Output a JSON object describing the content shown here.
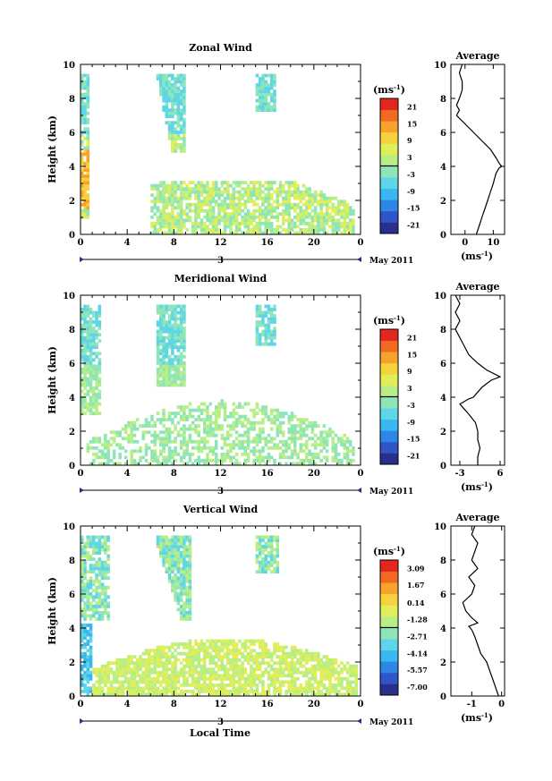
{
  "figure": {
    "month_label": "May 2011",
    "xlabel": "Local Time",
    "avg_title": "Average",
    "ylabel": "Height (km)",
    "cbar_unit": "(ms",
    "unit_sup": "-1",
    "unit_close": ")",
    "avg_xlabel": "(ms",
    "colormap": [
      "#2b2f8c",
      "#2f55c8",
      "#2e86e6",
      "#38b8ee",
      "#5fd6e6",
      "#8ee6b8",
      "#b8ee86",
      "#e0ee5a",
      "#f6d23c",
      "#f7a22c",
      "#f26a22",
      "#e2271e"
    ]
  },
  "chart_data": [
    {
      "type": "heatmap",
      "title": "Zonal Wind",
      "x_ticks": [
        "0",
        "4",
        "8",
        "12",
        "16",
        "20",
        "0"
      ],
      "y_ticks": [
        "0",
        "2",
        "4",
        "6",
        "8",
        "10"
      ],
      "date_label": "3",
      "xlim": [
        0,
        24
      ],
      "ylim": [
        0,
        10
      ],
      "colorbar_ticks": [
        "21",
        "15",
        "9",
        "3",
        "-3",
        "-9",
        "-15",
        "-21"
      ],
      "colorbar_range": [
        -24,
        24
      ],
      "profile": {
        "title": "Average",
        "x_ticks": [
          "0",
          "10"
        ],
        "xlim": [
          -5,
          14
        ],
        "heights": [
          0,
          0.5,
          1,
          1.5,
          2,
          2.5,
          3,
          3.3,
          3.6,
          3.9,
          4.0,
          4.2,
          4.5,
          5,
          5.5,
          6,
          6.5,
          7,
          7.3,
          7.6,
          8,
          8.5,
          9,
          9.5,
          10
        ],
        "values": [
          4,
          5,
          6,
          7,
          8,
          9,
          10,
          10.5,
          11,
          12,
          13,
          12,
          11,
          9,
          6,
          3,
          0,
          -3,
          -2,
          -3,
          -2,
          -1,
          -1,
          -2,
          -1
        ]
      }
    },
    {
      "type": "heatmap",
      "title": "Meridional Wind",
      "x_ticks": [
        "0",
        "4",
        "8",
        "12",
        "16",
        "20",
        "0"
      ],
      "y_ticks": [
        "0",
        "2",
        "4",
        "6",
        "8",
        "10"
      ],
      "date_label": "3",
      "xlim": [
        0,
        24
      ],
      "ylim": [
        0,
        10
      ],
      "colorbar_ticks": [
        "21",
        "15",
        "9",
        "3",
        "-3",
        "-9",
        "-15",
        "-21"
      ],
      "colorbar_range": [
        -24,
        24
      ],
      "profile": {
        "title": "Average",
        "x_ticks": [
          "-3",
          "6"
        ],
        "xlim": [
          -5,
          7
        ],
        "heights": [
          0,
          0.5,
          1,
          1.5,
          2,
          2.5,
          3,
          3.3,
          3.6,
          3.9,
          4.0,
          4.3,
          4.6,
          5,
          5.2,
          5.6,
          6,
          6.5,
          7,
          7.5,
          8,
          8.5,
          9,
          9.5,
          10
        ],
        "values": [
          1,
          1,
          1.5,
          1,
          1,
          0.5,
          -1,
          -2,
          -3,
          -1,
          0,
          1,
          2,
          4,
          6,
          3,
          1,
          -1,
          -2,
          -3,
          -4,
          -3,
          -4,
          -3,
          -4
        ]
      }
    },
    {
      "type": "heatmap",
      "title": "Vertical Wind",
      "x_ticks": [
        "0",
        "4",
        "8",
        "12",
        "16",
        "20",
        "0"
      ],
      "y_ticks": [
        "0",
        "2",
        "4",
        "6",
        "8",
        "10"
      ],
      "date_label": "3",
      "xlim": [
        0,
        24
      ],
      "ylim": [
        0,
        10
      ],
      "colorbar_ticks": [
        "3.09",
        "1.67",
        "0.14",
        "-1.28",
        "-2.71",
        "-4.14",
        "-5.57",
        "-7.00"
      ],
      "colorbar_range": [
        -7.7,
        3.8
      ],
      "profile": {
        "title": "Average",
        "x_ticks": [
          "-1",
          "0"
        ],
        "xlim": [
          -1.7,
          0.1
        ],
        "heights": [
          0,
          0.5,
          1,
          1.5,
          2,
          2.5,
          3,
          3.5,
          3.9,
          4.1,
          4.3,
          4.6,
          5,
          5.5,
          6,
          6.5,
          7,
          7.5,
          8,
          8.5,
          9,
          9.5,
          10
        ],
        "values": [
          -0.1,
          -0.2,
          -0.3,
          -0.4,
          -0.5,
          -0.7,
          -0.8,
          -0.9,
          -1.0,
          -1.1,
          -0.8,
          -1.0,
          -1.2,
          -1.3,
          -1.0,
          -0.9,
          -1.1,
          -0.8,
          -1.0,
          -0.9,
          -0.8,
          -1.0,
          -0.9
        ]
      }
    }
  ]
}
